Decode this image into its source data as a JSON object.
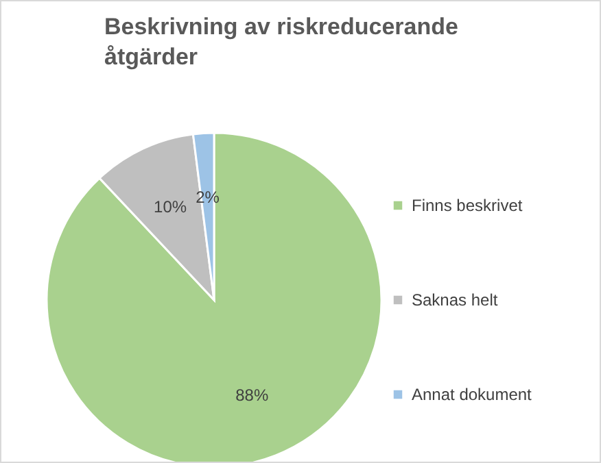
{
  "chart_data": {
    "type": "pie",
    "title": "Beskrivning av riskreducerande åtgärder",
    "categories": [
      "Finns beskrivet",
      "Saknas helt",
      "Annat dokument"
    ],
    "values": [
      88,
      10,
      2
    ],
    "value_labels": [
      "88%",
      "10%",
      "2%"
    ],
    "colors": [
      "#a9d18e",
      "#bfbfbf",
      "#9dc3e6"
    ],
    "legend": "right"
  }
}
